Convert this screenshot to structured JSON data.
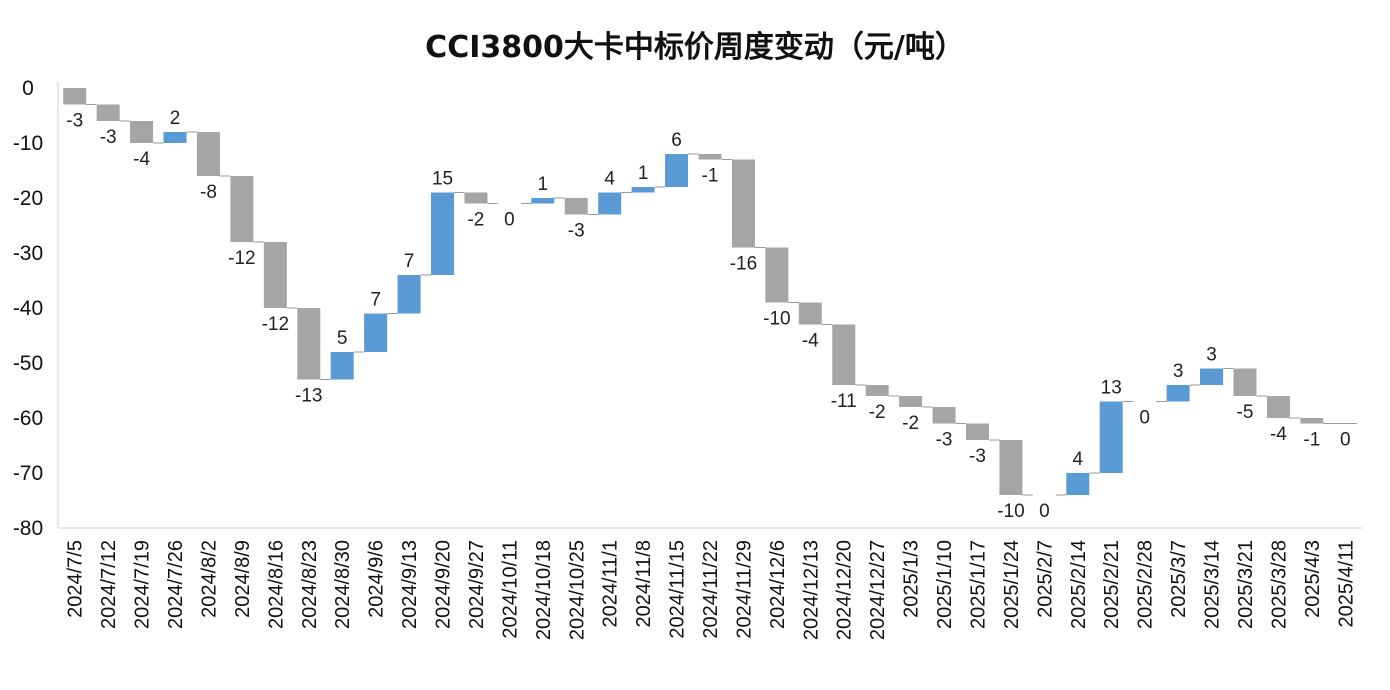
{
  "chart_data": {
    "type": "waterfall",
    "title": "CCI3800大卡中标价周度变动（元/吨）",
    "xlabel": "",
    "ylabel": "",
    "ylim": [
      -80,
      0
    ],
    "yticks": [
      0,
      -10,
      -20,
      -30,
      -40,
      -50,
      -60,
      -70,
      -80
    ],
    "grid": false,
    "legend": "none",
    "colors": {
      "increase": "#5b9bd5",
      "decrease": "#a5a5a5",
      "connector": "#999999"
    },
    "categories": [
      "2024/7/5",
      "2024/7/12",
      "2024/7/19",
      "2024/7/26",
      "2024/8/2",
      "2024/8/9",
      "2024/8/16",
      "2024/8/23",
      "2024/8/30",
      "2024/9/6",
      "2024/9/13",
      "2024/9/20",
      "2024/9/27",
      "2024/10/11",
      "2024/10/18",
      "2024/10/25",
      "2024/11/1",
      "2024/11/8",
      "2024/11/15",
      "2024/11/22",
      "2024/11/29",
      "2024/12/6",
      "2024/12/13",
      "2024/12/20",
      "2024/12/27",
      "2025/1/3",
      "2025/1/10",
      "2025/1/17",
      "2025/1/24",
      "2025/2/7",
      "2025/2/14",
      "2025/2/21",
      "2025/2/28",
      "2025/3/7",
      "2025/3/14",
      "2025/3/21",
      "2025/3/28",
      "2025/4/3",
      "2025/4/11"
    ],
    "values": [
      -3,
      -3,
      -4,
      2,
      -8,
      -12,
      -12,
      -13,
      5,
      7,
      7,
      15,
      -2,
      0,
      1,
      -3,
      4,
      1,
      6,
      -1,
      -16,
      -10,
      -4,
      -11,
      -2,
      -2,
      -3,
      -3,
      -10,
      0,
      4,
      13,
      0,
      3,
      3,
      -5,
      -4,
      -1,
      0
    ]
  }
}
